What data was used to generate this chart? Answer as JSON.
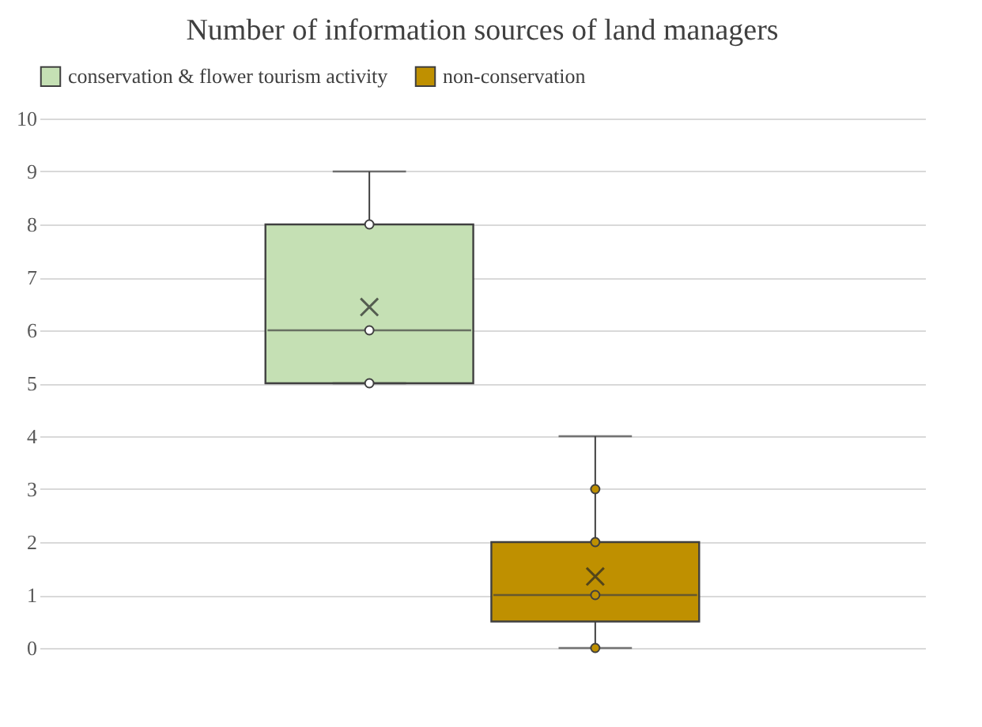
{
  "chart_data": {
    "type": "box",
    "title": "Number of information sources of land managers",
    "categories": [
      null
    ],
    "series": [
      {
        "type": "box",
        "name": "conservation & flower tourism activity",
        "color": "#c5e0b4",
        "boxes": [
          {
            "low": 5,
            "q1": 5,
            "median": 6,
            "q3": 8,
            "high": 9,
            "mean": 6.44
          }
        ]
      },
      {
        "type": "box",
        "name": "non-conservation",
        "color": "#bf9000",
        "boxes": [
          {
            "low": 0,
            "q1": 0.5,
            "median": 1,
            "q3": 2,
            "high": 4,
            "mean": 1.35
          }
        ]
      },
      {
        "type": "scatter",
        "color": "#ffffff",
        "x": [
          null,
          null,
          null
        ],
        "values": [
          5,
          6,
          8
        ]
      },
      {
        "type": "scatter",
        "color": "#bf9000",
        "x": [
          null,
          null,
          null,
          null
        ],
        "values": [
          0,
          1,
          2,
          3
        ]
      }
    ],
    "ylim": [
      0,
      10
    ],
    "yticks": [
      0,
      1,
      2,
      3,
      4,
      5,
      6,
      7,
      8,
      9,
      10
    ],
    "grid": "y",
    "legend": "top",
    "marker": "circle"
  }
}
